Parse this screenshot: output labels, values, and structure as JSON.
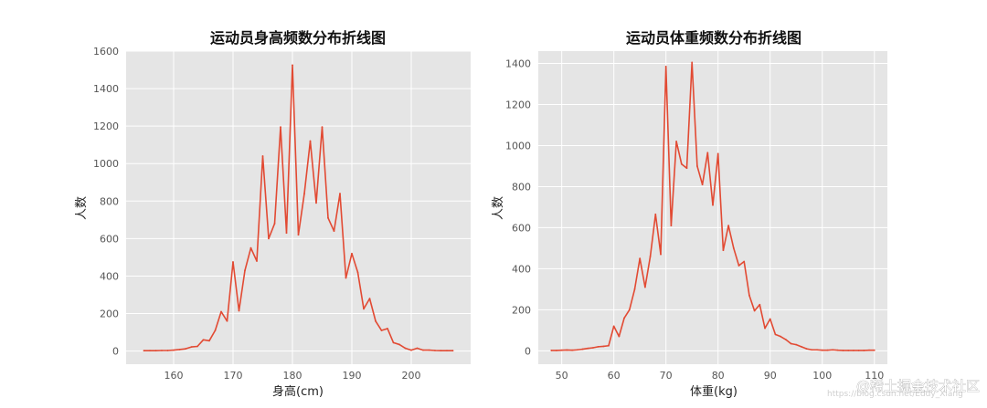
{
  "chart_data": [
    {
      "type": "line",
      "title": "运动员身高频数分布折线图",
      "xlabel": "身高(cm)",
      "ylabel": "人数",
      "xlim": [
        152,
        210
      ],
      "ylim": [
        -70,
        1600
      ],
      "xticks": [
        160,
        170,
        180,
        190,
        200
      ],
      "yticks": [
        0,
        200,
        400,
        600,
        800,
        1000,
        1200,
        1400,
        1600
      ],
      "grid": true,
      "line_color": "#E24A33",
      "series": [
        {
          "x": [
            155,
            156,
            157,
            158,
            159,
            160,
            161,
            162,
            163,
            164,
            165,
            166,
            167,
            168,
            169,
            170,
            171,
            172,
            173,
            174,
            175,
            176,
            177,
            178,
            179,
            180,
            181,
            182,
            183,
            184,
            185,
            186,
            187,
            188,
            189,
            190,
            191,
            192,
            193,
            194,
            195,
            196,
            197,
            198,
            199,
            200,
            201,
            202,
            203,
            204,
            205,
            206,
            207
          ],
          "values": [
            2,
            2,
            2,
            3,
            3,
            5,
            8,
            12,
            22,
            25,
            60,
            55,
            110,
            210,
            160,
            475,
            215,
            430,
            550,
            480,
            1040,
            600,
            680,
            1195,
            630,
            1525,
            620,
            840,
            1120,
            790,
            1195,
            710,
            640,
            840,
            390,
            520,
            420,
            225,
            280,
            160,
            110,
            120,
            45,
            35,
            15,
            5,
            15,
            5,
            5,
            3,
            2,
            2,
            2
          ]
        }
      ]
    },
    {
      "type": "line",
      "title": "运动员体重频数分布折线图",
      "xlabel": "体重(kg)",
      "ylabel": "人数",
      "xlim": [
        45.5,
        112.5
      ],
      "ylim": [
        -65,
        1460
      ],
      "xticks": [
        50,
        60,
        70,
        80,
        90,
        100,
        110
      ],
      "yticks": [
        0,
        200,
        400,
        600,
        800,
        1000,
        1200,
        1400
      ],
      "grid": true,
      "line_color": "#E24A33",
      "series": [
        {
          "x": [
            48,
            49,
            50,
            51,
            52,
            53,
            54,
            55,
            56,
            57,
            58,
            59,
            60,
            61,
            62,
            63,
            64,
            65,
            66,
            67,
            68,
            69,
            70,
            71,
            72,
            73,
            74,
            75,
            76,
            77,
            78,
            79,
            80,
            81,
            82,
            83,
            84,
            85,
            86,
            87,
            88,
            89,
            90,
            91,
            92,
            93,
            94,
            95,
            96,
            97,
            98,
            99,
            100,
            101,
            102,
            103,
            104,
            105,
            106,
            107,
            108,
            109,
            110
          ],
          "values": [
            2,
            2,
            3,
            4,
            3,
            5,
            8,
            12,
            15,
            20,
            22,
            25,
            120,
            70,
            160,
            200,
            300,
            450,
            310,
            460,
            665,
            470,
            1385,
            610,
            1020,
            910,
            890,
            1405,
            900,
            810,
            965,
            710,
            960,
            490,
            610,
            500,
            415,
            435,
            270,
            195,
            225,
            110,
            155,
            80,
            70,
            55,
            35,
            30,
            20,
            10,
            5,
            5,
            3,
            3,
            5,
            3,
            2,
            2,
            2,
            2,
            2,
            3,
            3
          ]
        }
      ]
    }
  ],
  "watermark": "@稀土掘金技术社区",
  "watermark_faint": "https://blog.csdn.net/Eddy_Xiang"
}
